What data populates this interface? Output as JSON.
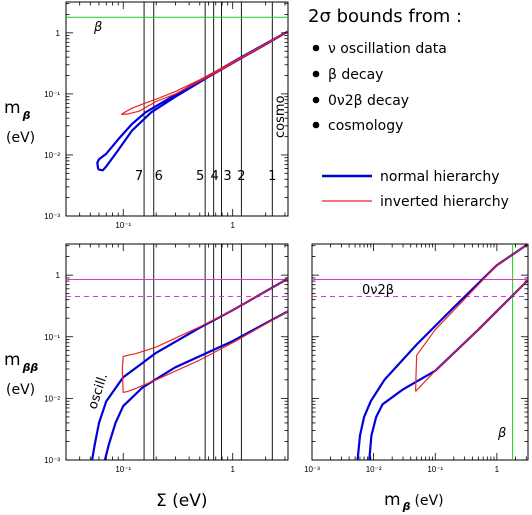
{
  "header": {
    "title": "2σ bounds from :",
    "bullets": [
      "ν oscillation data",
      "β decay",
      "0ν2β decay",
      "cosmology"
    ]
  },
  "legend": {
    "items": [
      {
        "label": "normal hierarchy",
        "color": "#0000dd"
      },
      {
        "label": "inverted hierarchy",
        "color": "#ee2222"
      }
    ]
  },
  "labels": {
    "top_ylabel_main": "m",
    "top_ylabel_sub": "β",
    "top_ylabel_unit": "(eV)",
    "bot_ylabel_main": "m",
    "bot_ylabel_sub": "ββ",
    "bot_ylabel_unit": "(eV)",
    "bl_xlabel": "Σ  (eV)",
    "br_xlabel_main": "m",
    "br_xlabel_sub": "β",
    "br_xlabel_unit": "(eV)",
    "beta_top": "β",
    "beta_br": "β",
    "cosmo": "cosmo",
    "oscill": "oscill.",
    "zvbb": "0ν2β",
    "cosmo_numbers": [
      "7",
      "6",
      "5",
      "4",
      "3",
      "2",
      "1"
    ]
  },
  "colors": {
    "normal": "#0000dd",
    "inverted": "#ee2222",
    "beta_limit": "#22cc22",
    "zvbb_limit": "#dd33dd"
  },
  "chart_data": [
    {
      "id": "top",
      "type": "line",
      "xscale": "log",
      "yscale": "log",
      "xlim": [
        0.03,
        3.2
      ],
      "ylim": [
        0.001,
        3.2
      ],
      "xticks": [
        {
          "v": 0.1,
          "label": "10⁻¹"
        },
        {
          "v": 1,
          "label": "1"
        }
      ],
      "yticks": [
        {
          "v": 0.001,
          "label": "10⁻³"
        },
        {
          "v": 0.01,
          "label": "10⁻²"
        },
        {
          "v": 0.1,
          "label": "10⁻¹"
        },
        {
          "v": 1,
          "label": "1"
        }
      ],
      "vlines": [
        0.155,
        0.19,
        0.56,
        0.67,
        0.79,
        1.2,
        2.3
      ],
      "hline_beta": 1.8,
      "series": [
        {
          "key": "normal",
          "points": [
            [
              0.059,
              0.0058
            ],
            [
              0.065,
              0.0056
            ],
            [
              0.07,
              0.0065
            ],
            [
              0.09,
              0.012
            ],
            [
              0.12,
              0.025
            ],
            [
              0.18,
              0.05
            ],
            [
              0.3,
              0.09
            ],
            [
              0.6,
              0.19
            ],
            [
              1,
              0.32
            ],
            [
              2,
              0.65
            ],
            [
              3.2,
              1.05
            ],
            [
              2.5,
              0.83
            ],
            [
              1.2,
              0.4
            ],
            [
              0.7,
              0.23
            ],
            [
              0.4,
              0.13
            ],
            [
              0.25,
              0.08
            ],
            [
              0.16,
              0.05
            ],
            [
              0.12,
              0.032
            ],
            [
              0.09,
              0.018
            ],
            [
              0.07,
              0.0105
            ],
            [
              0.06,
              0.0085
            ],
            [
              0.058,
              0.0075
            ],
            [
              0.059,
              0.0058
            ]
          ]
        },
        {
          "key": "inverted",
          "points": [
            [
              0.096,
              0.046
            ],
            [
              0.11,
              0.047
            ],
            [
              0.14,
              0.052
            ],
            [
              0.2,
              0.075
            ],
            [
              0.3,
              0.1
            ],
            [
              0.6,
              0.19
            ],
            [
              1,
              0.32
            ],
            [
              3.2,
              1.05
            ],
            [
              2.5,
              0.83
            ],
            [
              1,
              0.33
            ],
            [
              0.5,
              0.17
            ],
            [
              0.3,
              0.11
            ],
            [
              0.2,
              0.082
            ],
            [
              0.15,
              0.068
            ],
            [
              0.12,
              0.058
            ],
            [
              0.103,
              0.05
            ],
            [
              0.096,
              0.046
            ]
          ]
        }
      ]
    },
    {
      "id": "bottom-left",
      "type": "line",
      "xscale": "log",
      "yscale": "log",
      "xlim": [
        0.03,
        3.2
      ],
      "ylim": [
        0.001,
        3.2
      ],
      "xticks": [
        {
          "v": 0.1,
          "label": "10⁻¹"
        },
        {
          "v": 1,
          "label": "1"
        }
      ],
      "yticks": [
        {
          "v": 0.001,
          "label": "10⁻³"
        },
        {
          "v": 0.01,
          "label": "10⁻²"
        },
        {
          "v": 0.1,
          "label": "10⁻¹"
        },
        {
          "v": 1,
          "label": "1"
        }
      ],
      "vlines": [
        0.155,
        0.19,
        0.56,
        0.67,
        0.79,
        1.2,
        2.3
      ],
      "hline_solid": 0.85,
      "hline_dashed": 0.45,
      "series": [
        {
          "key": "normal",
          "points": [
            [
              0.052,
              0.001
            ],
            [
              0.055,
              0.0018
            ],
            [
              0.06,
              0.004
            ],
            [
              0.07,
              0.009
            ],
            [
              0.1,
              0.022
            ],
            [
              0.2,
              0.055
            ],
            [
              0.5,
              0.14
            ],
            [
              1,
              0.27
            ],
            [
              3.2,
              0.88
            ]
          ]
        },
        {
          "key": "normal",
          "points": [
            [
              0.068,
              0.001
            ],
            [
              0.074,
              0.0018
            ],
            [
              0.085,
              0.004
            ],
            [
              0.1,
              0.0075
            ],
            [
              0.15,
              0.015
            ],
            [
              0.3,
              0.032
            ],
            [
              1,
              0.085
            ],
            [
              3.2,
              0.26
            ]
          ]
        },
        {
          "key": "inverted",
          "points": [
            [
              0.098,
              0.029
            ],
            [
              0.1,
              0.048
            ],
            [
              0.11,
              0.05
            ],
            [
              0.13,
              0.053
            ],
            [
              0.2,
              0.068
            ],
            [
              0.5,
              0.145
            ],
            [
              1,
              0.27
            ],
            [
              3.2,
              0.88
            ]
          ]
        },
        {
          "key": "inverted",
          "points": [
            [
              0.098,
              0.029
            ],
            [
              0.1,
              0.0125
            ],
            [
              0.11,
              0.013
            ],
            [
              0.13,
              0.0145
            ],
            [
              0.2,
              0.02
            ],
            [
              0.5,
              0.042
            ],
            [
              1,
              0.08
            ],
            [
              3.2,
              0.26
            ]
          ]
        }
      ]
    },
    {
      "id": "bottom-right",
      "type": "line",
      "xscale": "log",
      "yscale": "log",
      "xlim": [
        0.001,
        3.2
      ],
      "ylim": [
        0.001,
        3.2
      ],
      "xticks": [
        {
          "v": 0.001,
          "label": "10⁻³"
        },
        {
          "v": 0.01,
          "label": "10⁻²"
        },
        {
          "v": 0.1,
          "label": "10⁻¹"
        },
        {
          "v": 1,
          "label": "1"
        }
      ],
      "yticks": [],
      "vline_beta": 1.8,
      "hline_solid": 0.85,
      "hline_dashed": 0.45,
      "series": [
        {
          "key": "normal",
          "points": [
            [
              0.0055,
              0.001
            ],
            [
              0.006,
              0.0025
            ],
            [
              0.007,
              0.005
            ],
            [
              0.009,
              0.009
            ],
            [
              0.015,
              0.02
            ],
            [
              0.05,
              0.075
            ],
            [
              0.2,
              0.3
            ],
            [
              1,
              1.45
            ],
            [
              3.2,
              3.2
            ]
          ]
        },
        {
          "key": "normal",
          "points": [
            [
              0.0085,
              0.001
            ],
            [
              0.0092,
              0.0025
            ],
            [
              0.011,
              0.005
            ],
            [
              0.014,
              0.008
            ],
            [
              0.03,
              0.014
            ],
            [
              0.1,
              0.028
            ],
            [
              0.5,
              0.13
            ],
            [
              3.2,
              0.83
            ]
          ]
        },
        {
          "key": "inverted",
          "points": [
            [
              0.048,
              0.013
            ],
            [
              0.049,
              0.03
            ],
            [
              0.05,
              0.05
            ],
            [
              0.1,
              0.13
            ],
            [
              0.5,
              0.7
            ],
            [
              1,
              1.45
            ],
            [
              3.2,
              3.2
            ]
          ]
        },
        {
          "key": "inverted",
          "points": [
            [
              0.048,
              0.013
            ],
            [
              0.1,
              0.028
            ],
            [
              0.5,
              0.13
            ],
            [
              3.2,
              0.83
            ]
          ]
        }
      ]
    }
  ]
}
